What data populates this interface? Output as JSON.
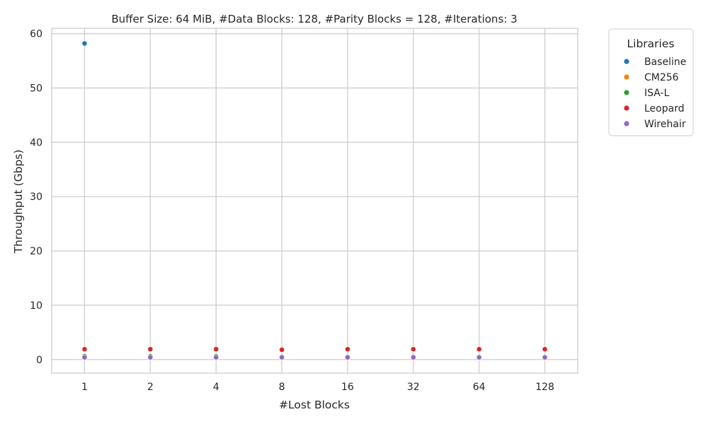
{
  "chart_data": {
    "type": "scatter",
    "title": "Buffer Size: 64 MiB, #Data Blocks: 128, #Parity Blocks = 128, #Iterations: 3",
    "xlabel": "#Lost Blocks",
    "ylabel": "Throughput (Gbps)",
    "x_scale": "categorical",
    "categories": [
      "1",
      "2",
      "4",
      "8",
      "16",
      "32",
      "64",
      "128"
    ],
    "ylim": [
      -2.5,
      61
    ],
    "yticks": [
      0,
      10,
      20,
      30,
      40,
      50,
      60
    ],
    "grid": true,
    "legend": {
      "title": "Libraries",
      "placement": "outside-top-right"
    },
    "series": [
      {
        "name": "Baseline",
        "color": "#1f77b4",
        "values": [
          58.2,
          null,
          null,
          null,
          null,
          null,
          null,
          null
        ]
      },
      {
        "name": "CM256",
        "color": "#ff7f0e",
        "values": [
          0.5,
          0.5,
          0.5,
          0.5,
          0.5,
          0.5,
          0.5,
          0.5
        ]
      },
      {
        "name": "ISA-L",
        "color": "#2ca02c",
        "values": [
          0.6,
          0.6,
          0.6,
          0.5,
          0.5,
          0.5,
          0.5,
          0.5
        ]
      },
      {
        "name": "Leopard",
        "color": "#d62728",
        "values": [
          1.9,
          1.9,
          1.9,
          1.8,
          1.9,
          1.9,
          1.9,
          1.9
        ]
      },
      {
        "name": "Wirehair",
        "color": "#9467bd",
        "values": [
          0.4,
          0.4,
          0.4,
          0.4,
          0.4,
          0.4,
          0.4,
          0.4
        ]
      }
    ]
  }
}
